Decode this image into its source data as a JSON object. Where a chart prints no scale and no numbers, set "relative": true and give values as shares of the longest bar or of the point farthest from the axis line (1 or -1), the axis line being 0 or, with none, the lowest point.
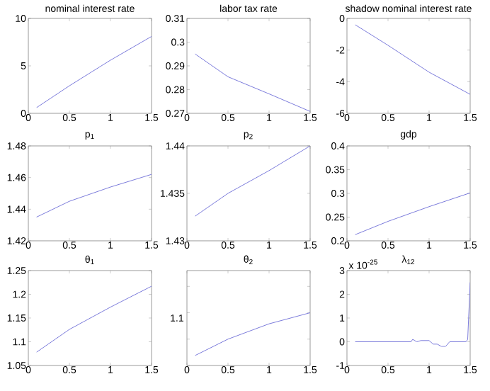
{
  "chart_data": [
    {
      "type": "line",
      "title": "nominal interest rate",
      "x": [
        0.1,
        0.5,
        1.0,
        1.5
      ],
      "values": [
        0.6,
        2.9,
        5.6,
        8.1
      ],
      "color": "#7b7bdb",
      "xlim": [
        0,
        1.5
      ],
      "xticks": [
        0,
        0.5,
        1,
        1.5
      ],
      "ylim": [
        0,
        10
      ],
      "yticks": [
        0,
        5,
        10
      ]
    },
    {
      "type": "line",
      "title": "labor tax rate",
      "x": [
        0.1,
        0.5,
        1.0,
        1.5
      ],
      "values": [
        0.295,
        0.2854,
        0.2782,
        0.2708
      ],
      "color": "#7b7bdb",
      "xlim": [
        0,
        1.5
      ],
      "xticks": [
        0,
        0.5,
        1,
        1.5
      ],
      "ylim": [
        0.27,
        0.31
      ],
      "yticks": [
        0.27,
        0.28,
        0.29,
        0.3,
        0.31
      ]
    },
    {
      "type": "line",
      "title": "shadow nominal interest rate",
      "x": [
        0.1,
        0.5,
        1.0,
        1.5
      ],
      "values": [
        -0.4,
        -1.7,
        -3.4,
        -4.8
      ],
      "color": "#7b7bdb",
      "xlim": [
        0,
        1.5
      ],
      "xticks": [
        0,
        0.5,
        1,
        1.5
      ],
      "ylim": [
        -6,
        0
      ],
      "yticks": [
        -6,
        -4,
        -2,
        0
      ]
    },
    {
      "type": "line",
      "title": "p$_{1}$",
      "x": [
        0.1,
        0.5,
        1.0,
        1.5
      ],
      "values": [
        1.435,
        1.445,
        1.454,
        1.462
      ],
      "color": "#7b7bdb",
      "xlim": [
        0,
        1.5
      ],
      "xticks": [
        0,
        0.5,
        1,
        1.5
      ],
      "ylim": [
        1.42,
        1.48
      ],
      "yticks": [
        1.42,
        1.44,
        1.46,
        1.48
      ]
    },
    {
      "type": "line",
      "title": "p$_{2}$",
      "x": [
        0.1,
        0.5,
        1.0,
        1.5
      ],
      "values": [
        1.4326,
        1.435,
        1.4374,
        1.44
      ],
      "color": "#7b7bdb",
      "xlim": [
        0,
        1.5
      ],
      "xticks": [
        0,
        0.5,
        1,
        1.5
      ],
      "ylim": [
        1.43,
        1.44
      ],
      "yticks": [
        1.43,
        1.435,
        1.44
      ]
    },
    {
      "type": "line",
      "title": "gdp",
      "x": [
        0.1,
        0.5,
        1.0,
        1.5
      ],
      "values": [
        0.213,
        0.241,
        0.272,
        0.301
      ],
      "color": "#7b7bdb",
      "xlim": [
        0,
        1.5
      ],
      "xticks": [
        0,
        0.5,
        1,
        1.5
      ],
      "ylim": [
        0.2,
        0.4
      ],
      "yticks": [
        0.2,
        0.25,
        0.3,
        0.35,
        0.4
      ]
    },
    {
      "type": "line",
      "title": "θ$_{1}$",
      "x": [
        0.1,
        0.5,
        1.0,
        1.5
      ],
      "values": [
        1.078,
        1.126,
        1.173,
        1.217
      ],
      "color": "#7b7bdb",
      "xlim": [
        0,
        1.5
      ],
      "xticks": [
        0,
        0.5,
        1,
        1.5
      ],
      "ylim": [
        1.05,
        1.25
      ],
      "yticks": [
        1.05,
        1.1,
        1.15,
        1.2,
        1.25
      ]
    },
    {
      "type": "line",
      "title": "θ$_{2}$",
      "x": [
        0.1,
        0.5,
        1.0,
        1.5
      ],
      "values": [
        0.19,
        0.5,
        0.79,
        1
      ],
      "relative": true,
      "annotations": [
        "1.1"
      ],
      "color": "#7b7bdb",
      "xlim": [
        0,
        1.5
      ],
      "xticks": [
        0,
        0.5,
        1,
        1.5
      ]
    },
    {
      "type": "line",
      "title": "λ$_{12}$",
      "annotations": [
        "x 10$^{-25}$"
      ],
      "x": [
        0.1,
        0.78,
        0.8,
        0.85,
        0.9,
        1.0,
        1.05,
        1.1,
        1.15,
        1.2,
        1.25,
        1.45,
        1.47,
        1.5
      ],
      "values": [
        0,
        0,
        0.1,
        0,
        0.05,
        0.05,
        -0.1,
        -0.1,
        -0.2,
        -0.2,
        0,
        0,
        0.1,
        2.5
      ],
      "color": "#7b7bdb",
      "xlim": [
        0,
        1.5
      ],
      "xticks": [
        0,
        0.5,
        1,
        1.5
      ],
      "ylim": [
        -1,
        3
      ],
      "yticks": [
        -1,
        0,
        1,
        2,
        3
      ]
    }
  ]
}
